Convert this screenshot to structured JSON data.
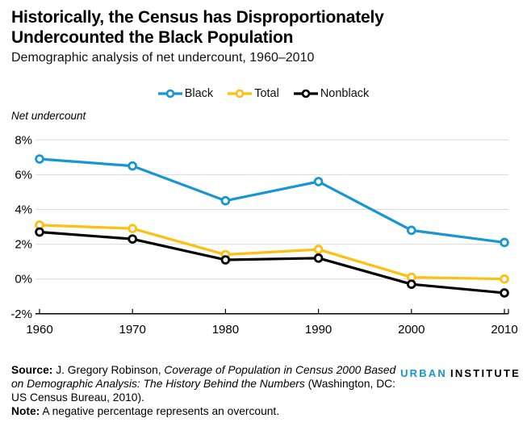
{
  "header": {
    "title_line1": "Historically, the Census has Disproportionately",
    "title_line2": "Undercounted the Black Population",
    "subtitle": "Demographic analysis of net undercount, 1960–2010"
  },
  "chart_data": {
    "type": "line",
    "title": "Historically, the Census has Disproportionately Undercounted the Black Population",
    "subtitle": "Demographic analysis of net undercount, 1960–2010",
    "ylabel": "Net undercount",
    "xlabel": "",
    "categories": [
      1960,
      1970,
      1980,
      1990,
      2000,
      2010
    ],
    "series": [
      {
        "name": "Black",
        "color": "#1696d2",
        "values": [
          6.9,
          6.5,
          4.5,
          5.6,
          2.8,
          2.1
        ]
      },
      {
        "name": "Total",
        "color": "#fdbf11",
        "values": [
          3.1,
          2.9,
          1.4,
          1.7,
          0.1,
          0.0
        ]
      },
      {
        "name": "Nonblack",
        "color": "#000000",
        "values": [
          2.7,
          2.3,
          1.1,
          1.2,
          -0.3,
          -0.8
        ]
      }
    ],
    "y_ticks": [
      {
        "label": "8%",
        "value": 8
      },
      {
        "label": "6%",
        "value": 6
      },
      {
        "label": "4%",
        "value": 4
      },
      {
        "label": "2%",
        "value": 2
      },
      {
        "label": "0%",
        "value": 0
      },
      {
        "label": "-2%",
        "value": -2
      }
    ],
    "ylim": [
      -2,
      8
    ],
    "grid": true,
    "legend_position": "top",
    "marker": "open-circle",
    "grid_color": "#d9d9d9",
    "axis_color": "#000000"
  },
  "footer": {
    "source_label": "Source:",
    "source_text_1": " J. Gregory Robinson, ",
    "source_title_italic": "Coverage of Population in Census 2000 Based on Demographic Analysis: The History Behind the Numbers",
    "source_text_2": " (Washington, DC: US Census Bureau, 2010).",
    "note_label": "Note:",
    "note_text": " A negative percentage represents an overcount."
  },
  "logo": {
    "urban": "URBAN",
    "institute": "INSTITUTE"
  }
}
